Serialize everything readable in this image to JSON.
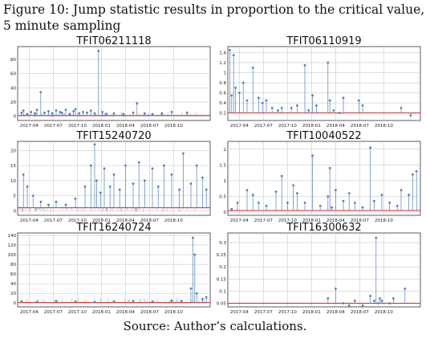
{
  "caption": "Figure 10:  Jump statistic results in proportion to the critical value, 5 minute sampling",
  "source": "Source: Author’s calculations.",
  "colors": {
    "series": "#4f81bd",
    "critical_line": "#d62728",
    "grid": "#bdbdbd"
  },
  "chart_data": [
    {
      "type": "scatter",
      "title": "TFIT06211118",
      "x_ticks": [
        "2017-04",
        "2017-07",
        "2017-10",
        "2018-01",
        "2018-04",
        "2018-07",
        "2018-10"
      ],
      "y_ticks": [
        0,
        20,
        40,
        60,
        80
      ],
      "ylim": [
        -6,
        98
      ],
      "xlim": [
        0,
        1
      ],
      "critical_value": 1,
      "pattern": "dense",
      "x": [
        0.02,
        0.03,
        0.05,
        0.07,
        0.09,
        0.1,
        0.12,
        0.14,
        0.16,
        0.18,
        0.2,
        0.22,
        0.23,
        0.25,
        0.27,
        0.29,
        0.3,
        0.32,
        0.34,
        0.36,
        0.38,
        0.4,
        0.42,
        0.44,
        0.46,
        0.5,
        0.55,
        0.6,
        0.62,
        0.66,
        0.7,
        0.75,
        0.8,
        0.88
      ],
      "y": [
        5,
        8,
        3,
        6,
        4,
        9,
        34,
        5,
        7,
        4,
        8,
        6,
        5,
        9,
        3,
        7,
        10,
        4,
        6,
        5,
        8,
        4,
        92,
        6,
        3,
        4,
        3,
        5,
        18,
        4,
        3,
        4,
        6,
        5
      ]
    },
    {
      "type": "scatter",
      "title": "TFIT06110919",
      "x_ticks": [
        "2017-04",
        "2017-07",
        "2017-10",
        "2018-01",
        "2018-04",
        "2018-07",
        "2018-10"
      ],
      "y_ticks": [
        0.2,
        0.4,
        0.6,
        0.8,
        1.0,
        1.2,
        1.4
      ],
      "ylim": [
        0.05,
        1.52
      ],
      "xlim": [
        0,
        1
      ],
      "critical_value": 0.2,
      "pattern": "sparse",
      "x": [
        0.01,
        0.02,
        0.03,
        0.04,
        0.06,
        0.08,
        0.1,
        0.13,
        0.16,
        0.18,
        0.2,
        0.23,
        0.26,
        0.28,
        0.33,
        0.36,
        0.4,
        0.42,
        0.44,
        0.46,
        0.52,
        0.53,
        0.55,
        0.58,
        0.6,
        0.68,
        0.7,
        0.9,
        0.95
      ],
      "y": [
        1.45,
        0.55,
        1.35,
        0.7,
        0.6,
        0.8,
        0.45,
        1.1,
        0.5,
        0.4,
        0.45,
        0.3,
        0.25,
        0.3,
        0.3,
        0.35,
        1.15,
        0.25,
        0.55,
        0.35,
        1.2,
        0.45,
        0.25,
        0.2,
        0.5,
        0.45,
        0.35,
        0.3,
        0.15
      ]
    },
    {
      "type": "scatter",
      "title": "TFIT15240720",
      "x_ticks": [
        "2017-04",
        "2017-07",
        "2017-10",
        "2018-01",
        "2018-04",
        "2018-07",
        "2018-10"
      ],
      "y_ticks": [
        0,
        5,
        10,
        15,
        20
      ],
      "ylim": [
        -1.5,
        23
      ],
      "xlim": [
        0,
        1
      ],
      "critical_value": 1,
      "pattern": "dense",
      "x": [
        0.03,
        0.05,
        0.08,
        0.12,
        0.16,
        0.2,
        0.25,
        0.3,
        0.35,
        0.38,
        0.4,
        0.41,
        0.43,
        0.45,
        0.48,
        0.5,
        0.53,
        0.56,
        0.6,
        0.63,
        0.66,
        0.7,
        0.73,
        0.76,
        0.8,
        0.84,
        0.86,
        0.9,
        0.93,
        0.96,
        0.98
      ],
      "y": [
        12,
        8,
        5,
        3,
        2,
        3,
        2,
        4,
        8,
        15,
        22,
        10,
        6,
        14,
        8,
        12,
        7,
        15,
        9,
        16,
        10,
        14,
        8,
        15,
        12,
        7,
        19,
        9,
        15,
        11,
        7
      ]
    },
    {
      "type": "scatter",
      "title": "TFIT10040522",
      "x_ticks": [
        "2017-04",
        "2017-07",
        "2017-10",
        "2018-01",
        "2018-04",
        "2018-07",
        "2018-10"
      ],
      "y_ticks": [
        0.0,
        0.5,
        1.0,
        1.5,
        2.0
      ],
      "ylim": [
        -0.1,
        2.25
      ],
      "xlim": [
        0,
        1
      ],
      "critical_value": 0.05,
      "pattern": "sparse",
      "x": [
        0.02,
        0.05,
        0.1,
        0.13,
        0.16,
        0.2,
        0.25,
        0.28,
        0.31,
        0.34,
        0.36,
        0.4,
        0.44,
        0.48,
        0.52,
        0.53,
        0.54,
        0.56,
        0.6,
        0.63,
        0.66,
        0.7,
        0.74,
        0.76,
        0.8,
        0.84,
        0.88,
        0.9,
        0.94,
        0.96,
        0.98
      ],
      "y": [
        0.1,
        0.3,
        0.7,
        0.55,
        0.3,
        0.2,
        0.65,
        1.15,
        0.3,
        0.85,
        0.6,
        0.3,
        1.8,
        0.2,
        0.5,
        1.4,
        0.15,
        0.7,
        0.35,
        0.6,
        0.3,
        0.15,
        2.05,
        0.35,
        0.55,
        0.3,
        0.2,
        0.7,
        0.55,
        1.2,
        1.3
      ]
    },
    {
      "type": "scatter",
      "title": "TFIT16240724",
      "x_ticks": [
        "2017-04",
        "2017-07",
        "2017-10",
        "2018-01",
        "2018-04",
        "2018-07",
        "2018-10"
      ],
      "y_ticks": [
        0,
        20,
        40,
        60,
        80,
        100,
        120,
        140
      ],
      "ylim": [
        -8,
        145
      ],
      "xlim": [
        0,
        1
      ],
      "critical_value": 1,
      "pattern": "dense",
      "x": [
        0.02,
        0.1,
        0.2,
        0.3,
        0.4,
        0.5,
        0.6,
        0.7,
        0.8,
        0.85,
        0.9,
        0.91,
        0.92,
        0.93,
        0.96,
        0.98
      ],
      "y": [
        3,
        2,
        4,
        3,
        2,
        3,
        4,
        3,
        5,
        4,
        30,
        135,
        100,
        20,
        8,
        12
      ]
    },
    {
      "type": "scatter",
      "title": "TFIT16300632",
      "x_ticks": [
        "2017-04",
        "2017-07",
        "2017-10",
        "2018-01",
        "2018-04",
        "2018-07",
        "2018-10"
      ],
      "y_ticks": [
        0.05,
        0.1,
        0.15,
        0.2,
        0.25,
        0.3
      ],
      "ylim": [
        0.035,
        0.34
      ],
      "xlim": [
        0,
        1
      ],
      "critical_value": 0.05,
      "pattern": "sparse",
      "x": [
        0.52,
        0.56,
        0.6,
        0.63,
        0.66,
        0.7,
        0.74,
        0.76,
        0.77,
        0.78,
        0.79,
        0.8,
        0.84,
        0.86,
        0.92
      ],
      "y": [
        0.07,
        0.11,
        0.05,
        0.04,
        0.06,
        0.04,
        0.08,
        0.06,
        0.32,
        0.05,
        0.07,
        0.06,
        0.05,
        0.07,
        0.11
      ]
    }
  ]
}
